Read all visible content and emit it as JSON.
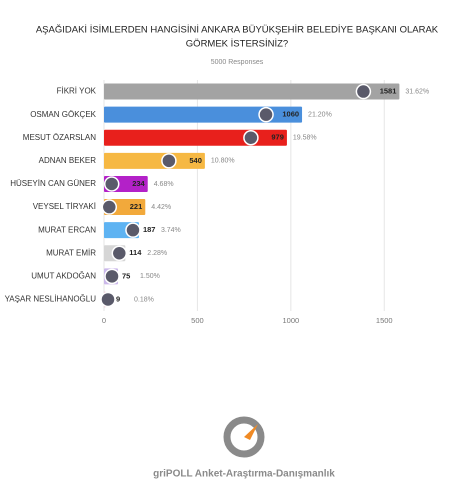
{
  "chart_data": {
    "type": "bar",
    "orientation": "horizontal",
    "title": [
      "AŞAĞIDAKİ İSİMLERDEN HANGİSİNİ ANKARA BÜYÜKŞEHİR BELEDİYE BAŞKANI OLARAK",
      "GÖRMEK İSTERSİNİZ?"
    ],
    "subtitle": "5000 Responses",
    "categories": [
      "FİKRİ YOK",
      "OSMAN GÖKÇEK",
      "MESUT ÖZARSLAN",
      "ADNAN BEKER",
      "HÜSEYİN CAN GÜNER",
      "VEYSEL TİRYAKİ",
      "MURAT ERCAN",
      "MURAT EMİR",
      "UMUT AKDOĞAN",
      "YAŞAR NESLİHANOĞLU"
    ],
    "values": [
      1581,
      1060,
      979,
      540,
      234,
      221,
      187,
      114,
      75,
      9
    ],
    "percent_labels": [
      "31.62%",
      "21.20%",
      "19.58%",
      "10.80%",
      "4.68%",
      "4.42%",
      "3.74%",
      "2.28%",
      "1.50%",
      "0.18%"
    ],
    "colors": [
      "#a3a3a3",
      "#4a8fdc",
      "#e8201c",
      "#f6b843",
      "#b321c8",
      "#f2a93b",
      "#5eb3f2",
      "#d6d6d6",
      "#cbb8ea",
      "#f3c9d6"
    ],
    "xlim": [
      0,
      1900
    ],
    "xticks": [
      0,
      500,
      1000,
      1500
    ],
    "grid": true,
    "footer": "griPOLL Anket-Araştırma-Danışmanlık"
  }
}
